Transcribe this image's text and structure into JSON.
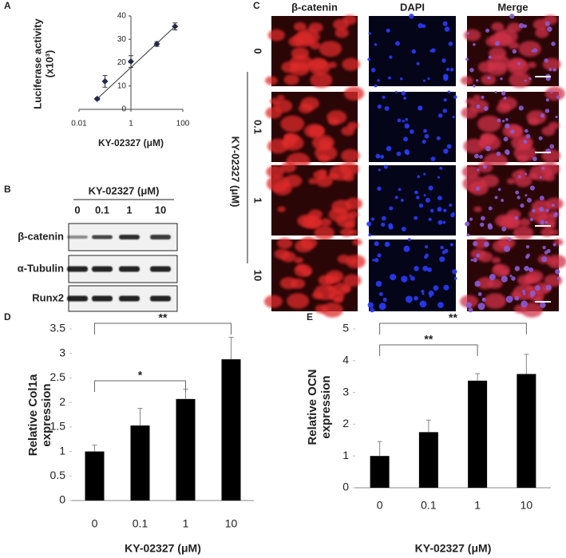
{
  "labels": [
    "A",
    "B",
    "C",
    "D",
    "E"
  ],
  "chart_data": [
    {
      "type": "scatter",
      "xlabel": "KY-02327 (μM)",
      "ylabel": [
        "Luciferase activity",
        "(x10³)"
      ],
      "x": [
        0.05,
        0.1,
        1,
        10,
        50
      ],
      "values": [
        4.5,
        12,
        20.5,
        28,
        35.5
      ],
      "errors": [
        0.5,
        2.5,
        2.5,
        1,
        1.5
      ],
      "color": "#1f2d4a",
      "xlog": true,
      "xlim": [
        0.01,
        100
      ],
      "xticks": [
        0.01,
        1,
        100
      ],
      "ylim": [
        0,
        40
      ],
      "yticks": [
        0,
        10,
        20,
        30,
        40
      ]
    },
    {
      "type": "bar",
      "xlabel": "KY-02327 (μM)",
      "ylabel": [
        "Relative Col1a",
        "expression"
      ],
      "categories": [
        "0",
        "0.1",
        "1",
        "10"
      ],
      "values": [
        1,
        1.53,
        2.07,
        2.88
      ],
      "errors": [
        0.13,
        0.35,
        0.2,
        0.45
      ],
      "color": "#000000",
      "ylim": [
        0,
        3.5
      ],
      "yticks": [
        0,
        0.5,
        1,
        1.5,
        2,
        2.5,
        3,
        3.5
      ],
      "annotations": [
        "*",
        "**"
      ]
    },
    {
      "type": "bar",
      "xlabel": "KY-02327 (μM)",
      "ylabel": [
        "Relative OCN",
        "expression"
      ],
      "categories": [
        "0",
        "0.1",
        "1",
        "10"
      ],
      "values": [
        1,
        1.75,
        3.37,
        3.58
      ],
      "errors": [
        0.45,
        0.38,
        0.22,
        0.62
      ],
      "color": "#000000",
      "ylim": [
        0,
        5
      ],
      "yticks": [
        0,
        1,
        2,
        3,
        4,
        5
      ],
      "annotations": [
        "**",
        "**"
      ]
    }
  ],
  "blot": {
    "header": "KY-02327 (μM)",
    "lanes": [
      "0",
      "0.1",
      "1",
      "10"
    ],
    "rows": [
      "β-catenin",
      "α-Tubulin",
      "Runx2"
    ]
  },
  "microscopy": {
    "columns": [
      "β-catenin",
      "DAPI",
      "Merge"
    ],
    "rows": [
      "0",
      "0.1",
      "1",
      "10"
    ],
    "row_axis": "KY-02327 (μM)"
  }
}
